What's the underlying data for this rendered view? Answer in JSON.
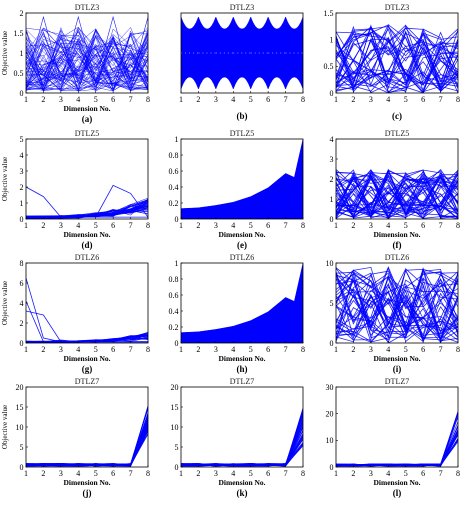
{
  "chart_data": [
    {
      "id": "a",
      "caption": "(a)",
      "title": "DTLZ3",
      "type": "line",
      "xlabel": "Dimension No.",
      "ylabel": "Objective value",
      "xlim": [
        1,
        8
      ],
      "ylim": [
        0,
        2
      ],
      "yticks": [
        0,
        0.5,
        1,
        1.5,
        2
      ],
      "xticks": [
        1,
        2,
        3,
        4,
        5,
        6,
        7,
        8
      ],
      "color": "#0000ff",
      "pattern": "dense-noisy",
      "params": {
        "lo": 0.0,
        "hi": 1.6,
        "n": 80
      }
    },
    {
      "id": "b",
      "caption": "(b)",
      "title": "DTLZ3",
      "type": "line",
      "xlabel": "",
      "ylabel": "",
      "xlim": [
        1,
        8
      ],
      "ylim": [
        0,
        1
      ],
      "yticks": [],
      "xticks": [
        1,
        2,
        3,
        4,
        5,
        6,
        7,
        8
      ],
      "color": "#0000ff",
      "pattern": "filled-scallop",
      "params": {
        "lo": 0.05,
        "hi": 0.95
      }
    },
    {
      "id": "c",
      "caption": "(c)",
      "title": "DTLZ3",
      "type": "line",
      "xlabel": "",
      "ylabel": "",
      "xlim": [
        1,
        8
      ],
      "ylim": [
        0,
        1.5
      ],
      "yticks": [
        0,
        0.5,
        1,
        1.5
      ],
      "xticks": [
        1,
        2,
        3,
        4,
        5,
        6,
        7,
        8
      ],
      "color": "#0000ff",
      "pattern": "zigzag",
      "params": {
        "lo": 0.0,
        "hi": 1.3,
        "n": 40
      }
    },
    {
      "id": "d",
      "caption": "(d)",
      "title": "DTLZ5",
      "type": "line",
      "xlabel": "Dimension No.",
      "ylabel": "Objective value",
      "xlim": [
        1,
        8
      ],
      "ylim": [
        0,
        5
      ],
      "yticks": [
        0,
        1,
        2,
        3,
        4,
        5
      ],
      "xticks": [
        1,
        2,
        3,
        4,
        5,
        6,
        7,
        8
      ],
      "color": "#0000ff",
      "pattern": "rising-tail",
      "params": {
        "base": 0.2,
        "tail": 1.0,
        "spikes": [
          [
            1,
            2.0,
            2,
            1.4
          ],
          [
            6,
            2.1,
            7,
            1.6
          ]
        ],
        "n": 40
      }
    },
    {
      "id": "e",
      "caption": "(e)",
      "title": "DTLZ5",
      "type": "area",
      "xlabel": "Dimension No.",
      "ylabel": "",
      "xlim": [
        1,
        8
      ],
      "ylim": [
        0,
        1
      ],
      "yticks": [
        0,
        0.2,
        0.4,
        0.6,
        0.8,
        1
      ],
      "xticks": [
        1,
        2,
        3,
        4,
        5,
        6,
        7,
        8
      ],
      "color": "#0000ff",
      "pattern": "exp-fill",
      "x": [
        1,
        2,
        3,
        4,
        5,
        6,
        7,
        7.5,
        8
      ],
      "upper": [
        0.13,
        0.14,
        0.17,
        0.21,
        0.28,
        0.39,
        0.57,
        0.52,
        1.0
      ],
      "lower": [
        0,
        0,
        0,
        0,
        0,
        0,
        0,
        0,
        0
      ]
    },
    {
      "id": "f",
      "caption": "(f)",
      "title": "DTLZ5",
      "type": "line",
      "xlabel": "Dimension No.",
      "ylabel": "",
      "xlim": [
        1,
        8
      ],
      "ylim": [
        0,
        4
      ],
      "yticks": [
        0,
        1,
        2,
        3,
        4
      ],
      "xticks": [
        1,
        2,
        3,
        4,
        5,
        6,
        7,
        8
      ],
      "color": "#0000ff",
      "pattern": "zigzag",
      "params": {
        "lo": 0.0,
        "hi": 2.5,
        "n": 50
      }
    },
    {
      "id": "g",
      "caption": "(g)",
      "title": "DTLZ6",
      "type": "line",
      "xlabel": "Dimension No.",
      "ylabel": "Objective value",
      "xlim": [
        1,
        8
      ],
      "ylim": [
        0,
        8
      ],
      "yticks": [
        0,
        2,
        4,
        6,
        8
      ],
      "xticks": [
        1,
        2,
        3,
        4,
        5,
        6,
        7,
        8
      ],
      "color": "#0000ff",
      "pattern": "rising-tail",
      "params": {
        "base": 0.2,
        "tail": 0.8,
        "spikes": [
          [
            1,
            6.5,
            2,
            0.5
          ],
          [
            1,
            4.2,
            3,
            0.3
          ],
          [
            1,
            3.2,
            2,
            2.8
          ]
        ],
        "n": 30
      }
    },
    {
      "id": "h",
      "caption": "(h)",
      "title": "DTLZ6",
      "type": "area",
      "xlabel": "Dimension No.",
      "ylabel": "",
      "xlim": [
        1,
        8
      ],
      "ylim": [
        0,
        1
      ],
      "yticks": [
        0,
        0.2,
        0.4,
        0.6,
        0.8,
        1
      ],
      "xticks": [
        1,
        2,
        3,
        4,
        5,
        6,
        7,
        8
      ],
      "color": "#0000ff",
      "pattern": "exp-fill",
      "x": [
        1,
        2,
        3,
        4,
        5,
        6,
        7,
        7.5,
        8
      ],
      "upper": [
        0.13,
        0.14,
        0.17,
        0.21,
        0.28,
        0.39,
        0.57,
        0.52,
        1.0
      ],
      "lower": [
        0,
        0,
        0,
        0,
        0,
        0,
        0,
        0,
        0
      ]
    },
    {
      "id": "i",
      "caption": "(i)",
      "title": "DTLZ6",
      "type": "line",
      "xlabel": "Dimension No.",
      "ylabel": "",
      "xlim": [
        1,
        8
      ],
      "ylim": [
        0,
        10
      ],
      "yticks": [
        0,
        5,
        10
      ],
      "xticks": [
        1,
        2,
        3,
        4,
        5,
        6,
        7,
        8
      ],
      "color": "#0000ff",
      "pattern": "zigzag",
      "params": {
        "lo": 0.0,
        "hi": 9.5,
        "n": 45
      }
    },
    {
      "id": "j",
      "caption": "(j)",
      "title": "DTLZ7",
      "type": "line",
      "xlabel": "Dimension No.",
      "ylabel": "Objective value",
      "xlim": [
        1,
        8
      ],
      "ylim": [
        0,
        20
      ],
      "yticks": [
        0,
        5,
        10,
        15,
        20
      ],
      "xticks": [
        1,
        2,
        3,
        4,
        5,
        6,
        7,
        8
      ],
      "color": "#0000ff",
      "pattern": "end-rise",
      "params": {
        "flat_lo": 0.2,
        "flat_hi": 0.9,
        "end_lo": 8.0,
        "end_hi": 15.5,
        "n": 40
      }
    },
    {
      "id": "k",
      "caption": "(k)",
      "title": "DTLZ7",
      "type": "line",
      "xlabel": "Dimension No.",
      "ylabel": "",
      "xlim": [
        1,
        8
      ],
      "ylim": [
        0,
        20
      ],
      "yticks": [
        0,
        5,
        10,
        15,
        20
      ],
      "xticks": [
        1,
        2,
        3,
        4,
        5,
        6,
        7,
        8
      ],
      "color": "#0000ff",
      "pattern": "end-rise",
      "params": {
        "flat_lo": 0.2,
        "flat_hi": 0.9,
        "end_lo": 5.0,
        "end_hi": 15.0,
        "n": 40
      }
    },
    {
      "id": "l",
      "caption": "(l)",
      "title": "DTLZ7",
      "type": "line",
      "xlabel": "Dimension No.",
      "ylabel": "",
      "xlim": [
        1,
        8
      ],
      "ylim": [
        0,
        30
      ],
      "yticks": [
        0,
        10,
        20,
        30
      ],
      "xticks": [
        1,
        2,
        3,
        4,
        5,
        6,
        7,
        8
      ],
      "color": "#0000ff",
      "pattern": "end-rise",
      "params": {
        "flat_lo": 0.3,
        "flat_hi": 1.2,
        "end_lo": 9.0,
        "end_hi": 21.0,
        "n": 30
      }
    }
  ]
}
